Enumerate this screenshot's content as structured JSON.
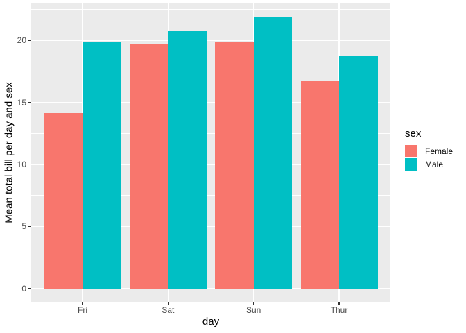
{
  "figure": {
    "background": "#FFFFFF",
    "panel_background": "#EBEBEB",
    "gridline_color": "#FFFFFF",
    "axis_text_color": "#4D4D4D",
    "axis_title_color": "#000000",
    "tick_mark_color": "#333333"
  },
  "chart_data": {
    "type": "bar",
    "orientation": "vertical",
    "grouping": "dodged",
    "categories": [
      "Fri",
      "Sat",
      "Sun",
      "Thur"
    ],
    "series": [
      {
        "name": "Female",
        "color": "#F8766D",
        "values": [
          14.15,
          19.68,
          19.87,
          16.72
        ]
      },
      {
        "name": "Male",
        "color": "#00BFC4",
        "values": [
          19.86,
          20.8,
          21.89,
          18.71
        ]
      }
    ],
    "xlabel": "day",
    "ylabel": "Mean total bill per day and sex",
    "ylim": [
      -1.09,
      22.98
    ],
    "yticks": [
      0,
      5,
      10,
      15,
      20
    ],
    "yticks_minor": [
      2.5,
      7.5,
      12.5,
      17.5,
      22.5
    ],
    "grid": true,
    "legend": {
      "title": "sex",
      "position": "right",
      "entries": [
        "Female",
        "Male"
      ]
    }
  }
}
